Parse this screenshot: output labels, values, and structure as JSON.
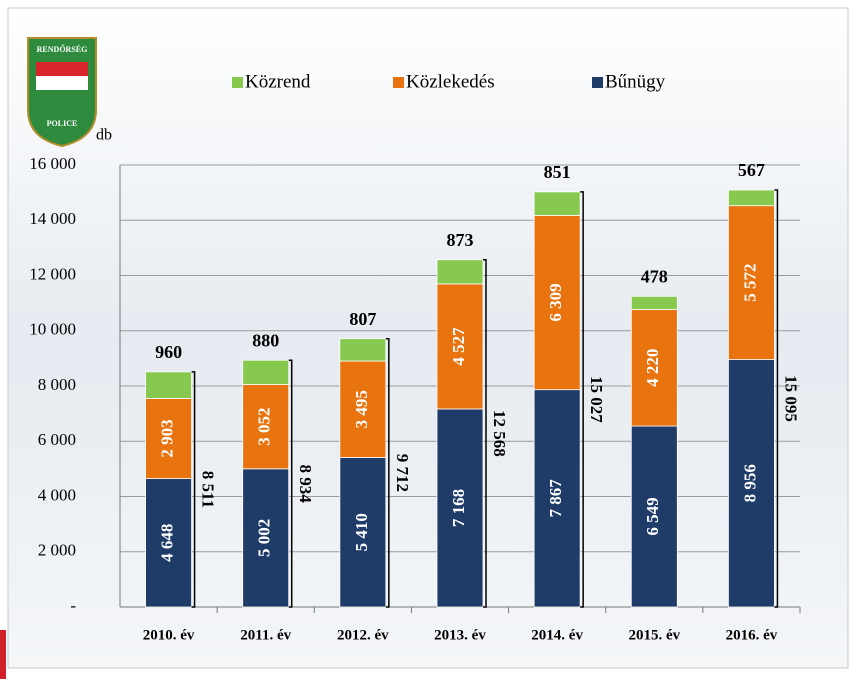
{
  "logo": {
    "top": "RENDŐRSÉG",
    "bottom": "POLICE"
  },
  "chart_data": {
    "type": "stacked_bar",
    "y_label": "db",
    "categories": [
      "2010. év",
      "2011. év",
      "2012. év",
      "2013. év",
      "2014. év",
      "2015. év",
      "2016. év"
    ],
    "series": [
      {
        "name": "Bűnügy",
        "color": "#1f3b68",
        "values": [
          4648,
          5002,
          5410,
          7168,
          7867,
          6549,
          8956
        ],
        "value_labels": [
          "4 648",
          "5 002",
          "5 410",
          "7 168",
          "7 867",
          "6 549",
          "8 956"
        ]
      },
      {
        "name": "Közlekedés",
        "color": "#e8730f",
        "values": [
          2903,
          3052,
          3495,
          4527,
          6309,
          4220,
          5572
        ],
        "value_labels": [
          "2 903",
          "3 052",
          "3 495",
          "4 527",
          "6 309",
          "4 220",
          "5 572"
        ]
      },
      {
        "name": "Közrend",
        "color": "#86c94e",
        "values": [
          960,
          880,
          807,
          873,
          851,
          478,
          567
        ]
      }
    ],
    "totals": [
      8511,
      8934,
      9712,
      12568,
      15027,
      null,
      15095
    ],
    "total_labels": [
      "8 511",
      "8 934",
      "9 712",
      "12 568",
      "15 027",
      null,
      "15 095"
    ],
    "legend_order": [
      2,
      1,
      0
    ],
    "ylim": [
      0,
      16000
    ],
    "yticks": [
      {
        "value": 0,
        "label": "-"
      },
      {
        "value": 2000,
        "label": "2 000"
      },
      {
        "value": 4000,
        "label": "4 000"
      },
      {
        "value": 6000,
        "label": "6 000"
      },
      {
        "value": 8000,
        "label": "8 000"
      },
      {
        "value": 10000,
        "label": "10 000"
      },
      {
        "value": 12000,
        "label": "12 000"
      },
      {
        "value": 14000,
        "label": "14 000"
      },
      {
        "value": 16000,
        "label": "16 000"
      }
    ],
    "grid": true
  }
}
